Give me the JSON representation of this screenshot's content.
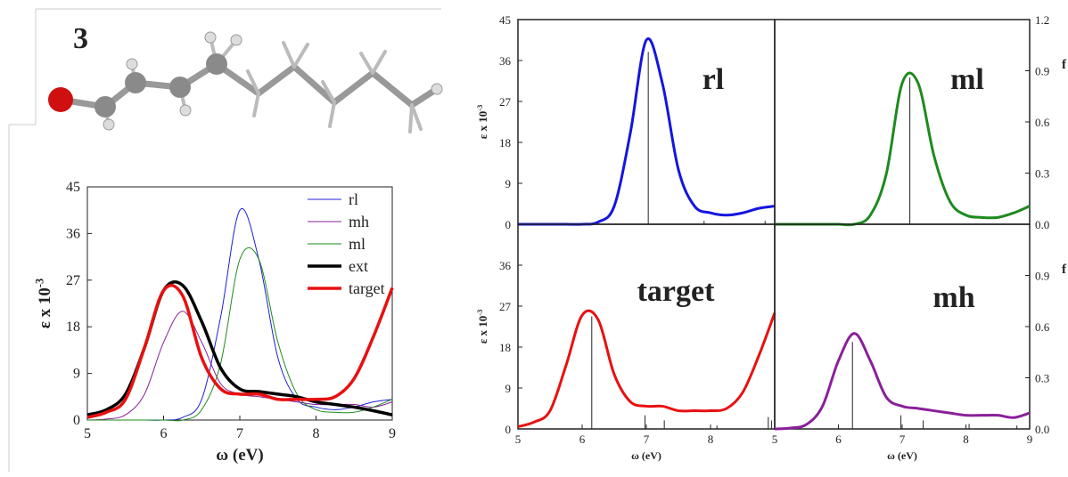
{
  "figure_label": "3",
  "chart_data": [
    {
      "type": "line",
      "xlabel": "ω (eV)",
      "ylabel": "ε x 10",
      "ylabel_sup": "-3",
      "xlim": [
        5,
        9
      ],
      "xticks": [
        5,
        6,
        7,
        8,
        9
      ],
      "ylim": [
        0,
        45
      ],
      "yticks": [
        0,
        9,
        18,
        27,
        36,
        45
      ],
      "legend": "top-right",
      "x": [
        5,
        5.25,
        5.5,
        5.75,
        6,
        6.25,
        6.5,
        6.75,
        7,
        7.25,
        7.5,
        7.75,
        8,
        8.25,
        8.5,
        8.75,
        9
      ],
      "series": [
        {
          "name": "rl",
          "color": "#1f1fd6",
          "linewidth": 1,
          "values": [
            0,
            0,
            0,
            0,
            0,
            0.5,
            4,
            20,
            40.5,
            31,
            12,
            4,
            2.5,
            2,
            2.5,
            3.5,
            4
          ]
        },
        {
          "name": "mh",
          "color": "#8a1f9a",
          "linewidth": 1,
          "values": [
            0,
            0.2,
            1,
            5,
            15,
            21,
            15,
            7,
            5,
            4.5,
            4,
            3.5,
            3,
            3,
            3,
            2.5,
            3.5
          ]
        },
        {
          "name": "ml",
          "color": "#1e8a1e",
          "linewidth": 1,
          "values": [
            0,
            0,
            0,
            0,
            0,
            0,
            2,
            11,
            31,
            31,
            15,
            5,
            2,
            1.5,
            1.5,
            2.5,
            4
          ]
        },
        {
          "name": "ext",
          "color": "#000000",
          "linewidth": 3.5,
          "values": [
            1,
            2,
            5,
            14,
            25,
            26,
            19,
            10,
            6,
            5.5,
            5,
            4.5,
            3.5,
            3,
            2.5,
            1.8,
            1
          ]
        },
        {
          "name": "target",
          "color": "#e81010",
          "linewidth": 3.5,
          "values": [
            0.5,
            1.5,
            4,
            14,
            25,
            24,
            12,
            6,
            5,
            5,
            4,
            4,
            4,
            4.5,
            8,
            16,
            25.5
          ]
        }
      ]
    },
    {
      "type": "spectrum",
      "label": "rl",
      "color": "#1515e0",
      "ylabel": "ε x 10",
      "ylabel_sup": "-3",
      "xlim": [
        5,
        9
      ],
      "ylim": [
        0,
        45
      ],
      "y2lim": [
        0,
        1.2
      ],
      "yticks": [
        0,
        9,
        18,
        27,
        36,
        45
      ],
      "x": [
        5,
        5.25,
        5.5,
        5.75,
        6,
        6.25,
        6.5,
        6.75,
        7,
        7.25,
        7.5,
        7.75,
        8,
        8.25,
        8.5,
        8.75,
        9
      ],
      "values": [
        0,
        0,
        0,
        0,
        0,
        0.5,
        4,
        20,
        40.5,
        31,
        12,
        4,
        2.5,
        2,
        2.5,
        3.5,
        4
      ],
      "stick_x": [
        7.03,
        7.9,
        8.85
      ],
      "stick_values": [
        1.01,
        0.02,
        0.02
      ]
    },
    {
      "type": "spectrum",
      "label": "ml",
      "color": "#1e8a1e",
      "y2label": "f",
      "xlim": [
        5,
        9
      ],
      "ylim": [
        0,
        45
      ],
      "y2lim": [
        0,
        1.2
      ],
      "y2ticks": [
        {
          "value": 0,
          "label": "0.0"
        },
        0.3,
        0.6,
        0.9,
        1.2
      ],
      "x": [
        5,
        5.25,
        5.5,
        5.75,
        6,
        6.25,
        6.5,
        6.75,
        7,
        7.25,
        7.5,
        7.75,
        8,
        8.25,
        8.5,
        8.75,
        9
      ],
      "values": [
        0,
        0,
        0,
        0,
        0,
        0,
        2,
        11,
        31,
        31,
        15,
        5,
        2,
        1.5,
        1.5,
        2.5,
        4
      ],
      "stick_x": [
        7.12
      ],
      "stick_values": [
        0.86
      ]
    },
    {
      "type": "spectrum",
      "label": "target",
      "color": "#e81010",
      "ylabel": "ε x 10",
      "ylabel_sup": "-3",
      "xlabel": "ω (eV)",
      "xlim": [
        5,
        9
      ],
      "xticks": [
        5,
        6,
        7,
        8
      ],
      "ylim": [
        0,
        45
      ],
      "y2lim": [
        0,
        1.2
      ],
      "yticks": [
        0,
        9,
        18,
        27,
        36
      ],
      "x": [
        5,
        5.25,
        5.5,
        5.75,
        6,
        6.25,
        6.5,
        6.75,
        7,
        7.25,
        7.5,
        7.75,
        8,
        8.25,
        8.5,
        8.75,
        9
      ],
      "values": [
        0.5,
        1.5,
        4,
        14,
        25,
        24,
        12,
        6,
        5,
        5,
        4,
        4,
        4,
        4.5,
        8,
        16,
        25.5
      ],
      "stick_x": [
        6.15,
        6.98,
        7.28,
        8.1,
        8.9,
        8.95
      ],
      "stick_values": [
        0.66,
        0.08,
        0.05,
        0.02,
        0.07,
        0.05
      ]
    },
    {
      "type": "spectrum",
      "label": "mh",
      "color": "#8a1f9a",
      "y2label": "f",
      "xlabel": "ω (eV)",
      "xlim": [
        5,
        9
      ],
      "xticks": [
        5,
        6,
        7,
        8,
        9
      ],
      "ylim": [
        0,
        45
      ],
      "y2lim": [
        0,
        1.2
      ],
      "y2ticks": [
        {
          "value": 0,
          "label": "0.0"
        },
        0.3,
        0.6,
        0.9
      ],
      "x": [
        5,
        5.25,
        5.5,
        5.75,
        6,
        6.25,
        6.5,
        6.75,
        7,
        7.25,
        7.5,
        7.75,
        8,
        8.25,
        8.5,
        8.75,
        9
      ],
      "values": [
        0,
        0.2,
        1,
        5,
        15,
        21,
        15,
        7,
        5,
        4.5,
        4,
        3.5,
        3,
        3,
        3,
        2.5,
        3.5
      ],
      "stick_x": [
        6.22,
        6.98,
        7.33,
        8.05,
        8.8
      ],
      "stick_values": [
        0.51,
        0.08,
        0.05,
        0.03,
        0.02
      ]
    }
  ]
}
